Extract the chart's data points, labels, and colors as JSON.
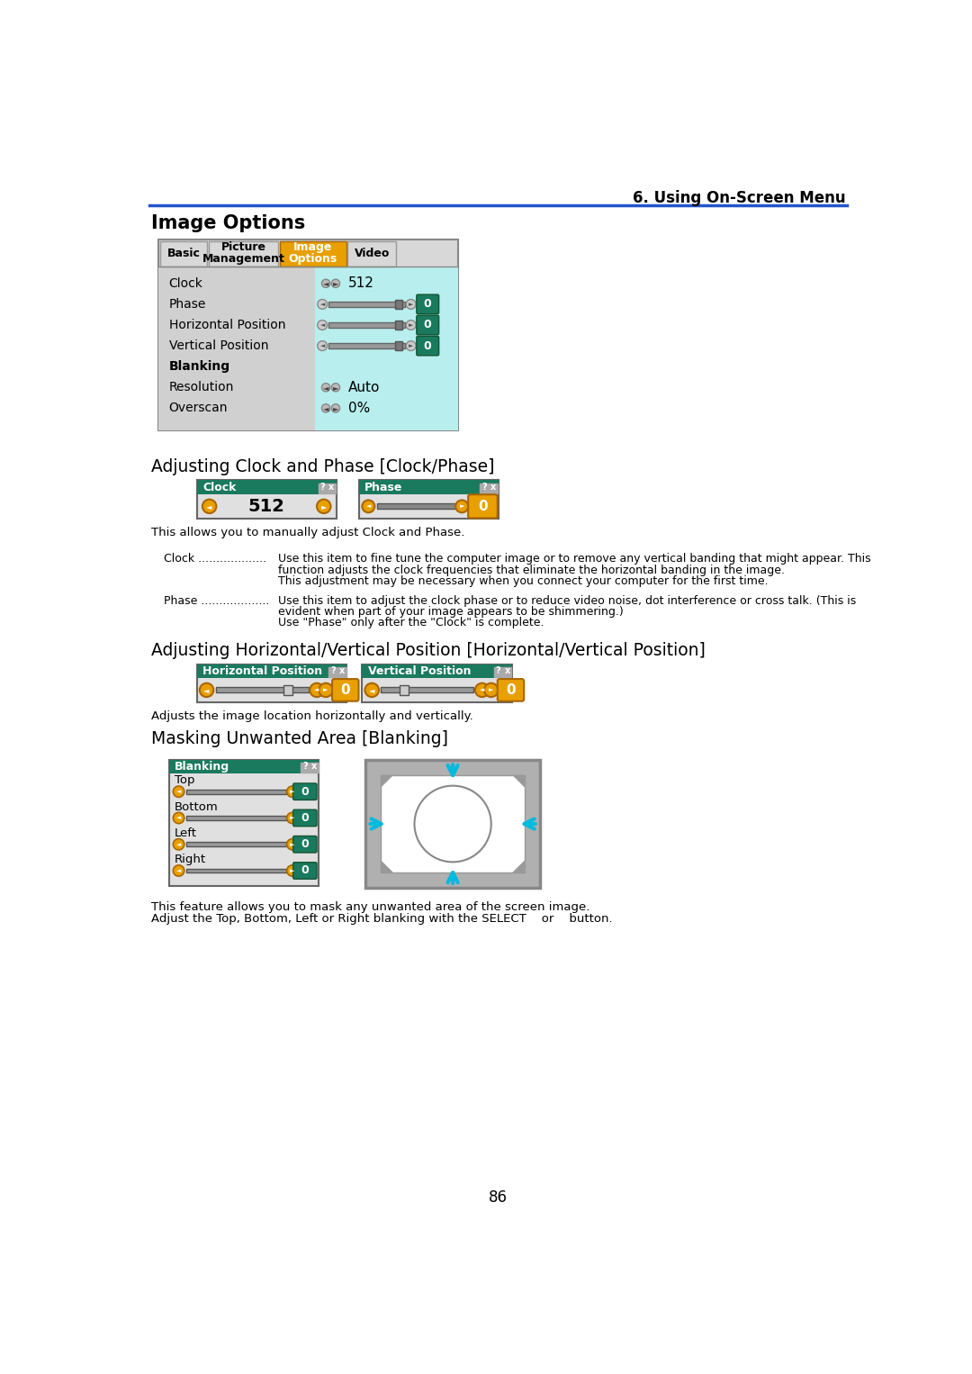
{
  "page_bg": "#ffffff",
  "header_line_color": "#2255cc",
  "header_text": "6. Using On-Screen Menu",
  "section1_title": "Image Options",
  "section2_title": "Adjusting Clock and Phase [Clock/Phase]",
  "section3_title": "Adjusting Horizontal/Vertical Position [Horizontal/Vertical Position]",
  "section4_title": "Masking Unwanted Area [Blanking]",
  "body_font_size": 9.0,
  "section_font_size": 13.5,
  "header_font_size": 12,
  "teal_color": "#1a7a5e",
  "light_teal_bg": "#b8eeee",
  "gray_tab": "#c8c8c8",
  "orange_color": "#e8a000",
  "dark_green_box": "#1a6e40",
  "white": "#ffffff",
  "black": "#000000",
  "slider_track_dark": "#444444",
  "slider_track_fill": "#555555"
}
